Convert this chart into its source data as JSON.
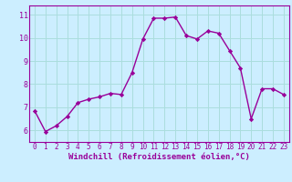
{
  "x": [
    0,
    1,
    2,
    3,
    4,
    5,
    6,
    7,
    8,
    9,
    10,
    11,
    12,
    13,
    14,
    15,
    16,
    17,
    18,
    19,
    20,
    21,
    22,
    23
  ],
  "y": [
    6.85,
    5.95,
    6.2,
    6.6,
    7.2,
    7.35,
    7.45,
    7.6,
    7.55,
    8.5,
    9.95,
    10.85,
    10.85,
    10.9,
    10.1,
    9.95,
    10.3,
    10.2,
    9.45,
    8.7,
    6.5,
    7.8,
    7.8,
    7.55
  ],
  "line_color": "#990099",
  "marker": "D",
  "marker_size": 2.2,
  "linewidth": 1.0,
  "xlabel": "Windchill (Refroidissement éolien,°C)",
  "xlim": [
    -0.5,
    23.5
  ],
  "ylim": [
    5.5,
    11.4
  ],
  "yticks": [
    6,
    7,
    8,
    9,
    10,
    11
  ],
  "xticks": [
    0,
    1,
    2,
    3,
    4,
    5,
    6,
    7,
    8,
    9,
    10,
    11,
    12,
    13,
    14,
    15,
    16,
    17,
    18,
    19,
    20,
    21,
    22,
    23
  ],
  "xtick_labels": [
    "0",
    "1",
    "2",
    "3",
    "4",
    "5",
    "6",
    "7",
    "8",
    "9",
    "10",
    "11",
    "12",
    "13",
    "14",
    "15",
    "16",
    "17",
    "18",
    "19",
    "20",
    "21",
    "22",
    "23"
  ],
  "bg_color": "#cceeff",
  "grid_color": "#aadddd",
  "xlabel_color": "#990099",
  "tick_label_color": "#990099",
  "spine_color": "#990099",
  "xlabel_fontsize": 6.5,
  "tick_fontsize": 5.5
}
